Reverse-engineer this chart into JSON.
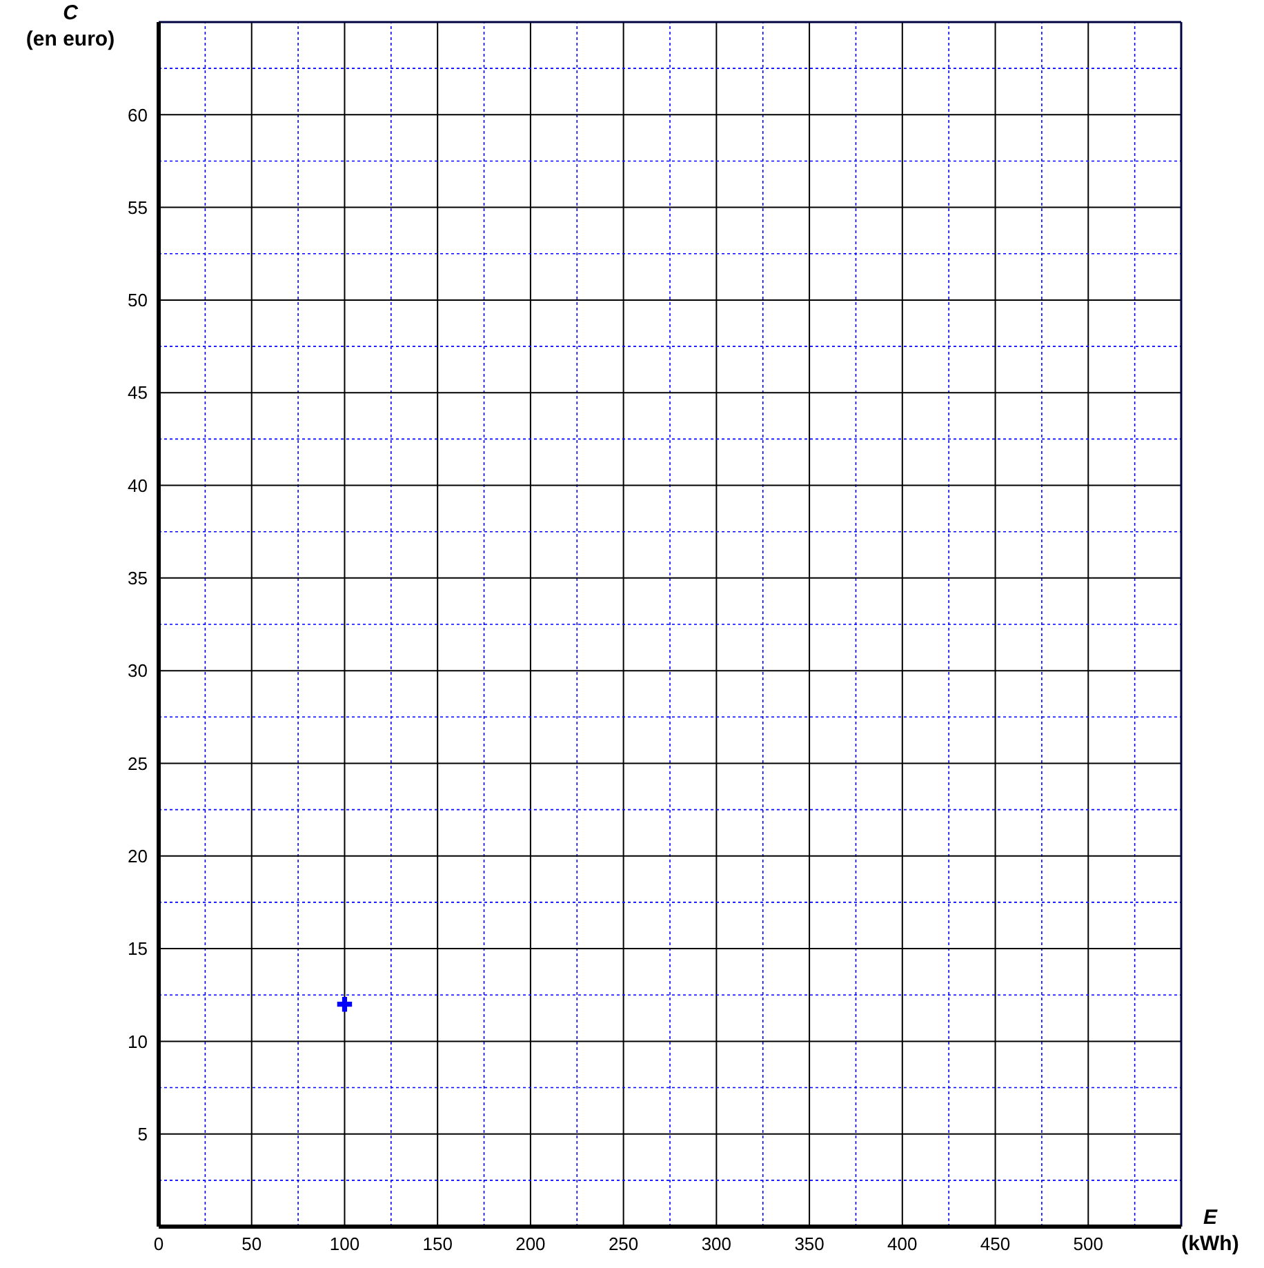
{
  "chart_data": {
    "type": "scatter",
    "title": "C\n(en euro)",
    "xlabel": "E\n(kWh)",
    "series": [
      {
        "color": "#0000ff",
        "x": [
          100
        ],
        "values": [
          12
        ]
      }
    ],
    "marker": "cross",
    "grid": true,
    "xlim": [
      0,
      550
    ],
    "ylim": [
      0,
      65
    ],
    "xticks": [
      0,
      {
        "value": 25,
        "label": null
      },
      50,
      {
        "value": 75,
        "label": null
      },
      100,
      {
        "value": 125,
        "label": null
      },
      150,
      {
        "value": 175,
        "label": null
      },
      200,
      {
        "value": 225,
        "label": null
      },
      250,
      {
        "value": 275,
        "label": null
      },
      300,
      {
        "value": 325,
        "label": null
      },
      350,
      {
        "value": 375,
        "label": null
      },
      400,
      {
        "value": 425,
        "label": null
      },
      450,
      {
        "value": 475,
        "label": null
      },
      500,
      {
        "value": 525,
        "label": null
      }
    ],
    "yticks": [
      {
        "value": 2.5,
        "label": null
      },
      5,
      {
        "value": 7.5,
        "label": null
      },
      10,
      {
        "value": 12.5,
        "label": null
      },
      15,
      {
        "value": 17.5,
        "label": null
      },
      20,
      {
        "value": 22.5,
        "label": null
      },
      25,
      {
        "value": 27.5,
        "label": null
      },
      30,
      {
        "value": 32.5,
        "label": null
      },
      35,
      {
        "value": 37.5,
        "label": null
      },
      40,
      {
        "value": 42.5,
        "label": null
      },
      45,
      {
        "value": 47.5,
        "label": null
      },
      50,
      {
        "value": 52.5,
        "label": null
      },
      55,
      {
        "value": 57.5,
        "label": null
      },
      60,
      {
        "value": 62.5,
        "label": null
      }
    ]
  }
}
